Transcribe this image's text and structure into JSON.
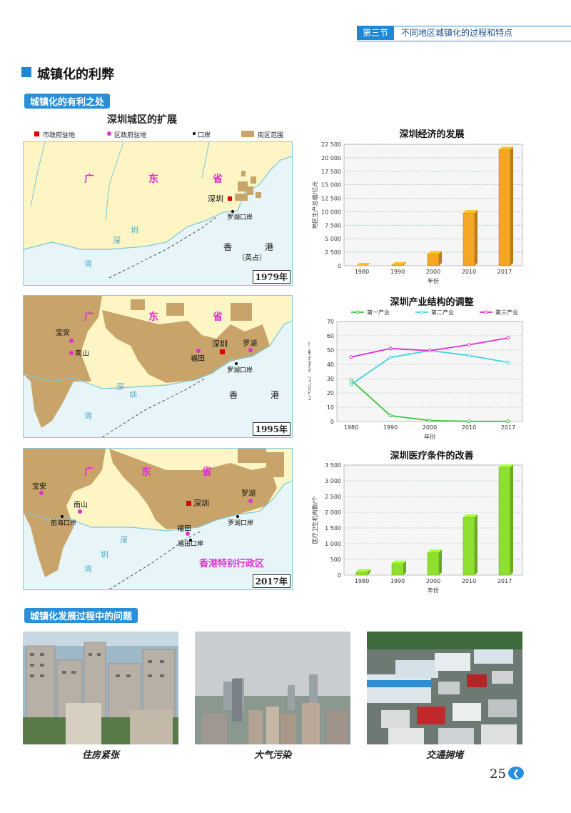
{
  "header": {
    "chapter": "第三节",
    "title": "不同地区城镇化的过程和特点"
  },
  "section_heading": "城镇化的利弊",
  "pill_benefits": "城镇化的有利之处",
  "pill_problems": "城镇化发展过程中的问题",
  "maps": {
    "title": "深圳城区的扩展",
    "legend": [
      "市政府驻地",
      "区政府驻地",
      "口岸",
      "街区范围"
    ],
    "map1": {
      "year": "1979年",
      "labels": [
        "广",
        "东",
        "省",
        "深圳",
        "罗湖口岸",
        "深",
        "圳",
        "湾",
        "香",
        "港",
        "（英占）"
      ]
    },
    "map2": {
      "year": "1995年",
      "labels": [
        "广",
        "东",
        "省",
        "宝安",
        "南山",
        "福田",
        "深圳",
        "罗湖",
        "罗湖口岸",
        "深",
        "圳",
        "湾",
        "香",
        "港"
      ]
    },
    "map3": {
      "year": "2017年",
      "labels": [
        "广",
        "东",
        "省",
        "宝安",
        "南山",
        "深圳",
        "罗湖",
        "前海口岸",
        "福田",
        "福田口岸",
        "罗湖口岸",
        "深",
        "圳",
        "湾",
        "香港特别行政区"
      ]
    }
  },
  "chart_data": [
    {
      "type": "bar",
      "title": "深圳经济的发展",
      "ylabel": "地区生产总值/亿元",
      "xlabel": "年份",
      "categories": [
        "1980",
        "1990",
        "2000",
        "2010",
        "2017"
      ],
      "values": [
        3,
        172,
        2187,
        9773,
        21503
      ],
      "ylim": [
        0,
        22500
      ],
      "yticks": [
        "0",
        "2 500",
        "5 000",
        "7 500",
        "10 000",
        "12 500",
        "15 000",
        "17 500",
        "20 000",
        "22 500"
      ],
      "color": "#f5a623"
    },
    {
      "type": "line",
      "title": "深圳产业结构的调整",
      "ylabel": "占地区生产总值比重/%",
      "xlabel": "年份",
      "x": [
        "1980",
        "1990",
        "2000",
        "2010",
        "2017"
      ],
      "series": [
        {
          "name": "第一产业",
          "values": [
            28.9,
            4.1,
            0.7,
            0.1,
            0.1
          ],
          "color": "#3ec43e"
        },
        {
          "name": "第二产业",
          "values": [
            26.0,
            44.8,
            49.7,
            46.2,
            41.4
          ],
          "color": "#3fd3e0"
        },
        {
          "name": "第三产业",
          "values": [
            45.1,
            51.1,
            49.6,
            53.7,
            58.5
          ],
          "color": "#e02ed0"
        }
      ],
      "ylim": [
        0,
        70
      ],
      "yticks": [
        "0",
        "10",
        "20",
        "30",
        "40",
        "50",
        "60",
        "70"
      ],
      "legend": "top"
    },
    {
      "type": "bar",
      "title": "深圳医疗条件的改善",
      "ylabel": "医疗卫生机构数/个",
      "xlabel": "年份",
      "categories": [
        "1980",
        "1990",
        "2000",
        "2010",
        "2017"
      ],
      "values": [
        100,
        370,
        720,
        1840,
        3430
      ],
      "ylim": [
        0,
        3500
      ],
      "yticks": [
        "0",
        "500",
        "1 000",
        "1 500",
        "2 000",
        "2 500",
        "3 000",
        "3 500"
      ],
      "color": "#8fe02e"
    }
  ],
  "photos": [
    {
      "caption": "住房紧张",
      "icon": "housing-photo"
    },
    {
      "caption": "大气污染",
      "icon": "pollution-photo"
    },
    {
      "caption": "交通拥堵",
      "icon": "traffic-photo"
    }
  ],
  "page_number": "25"
}
